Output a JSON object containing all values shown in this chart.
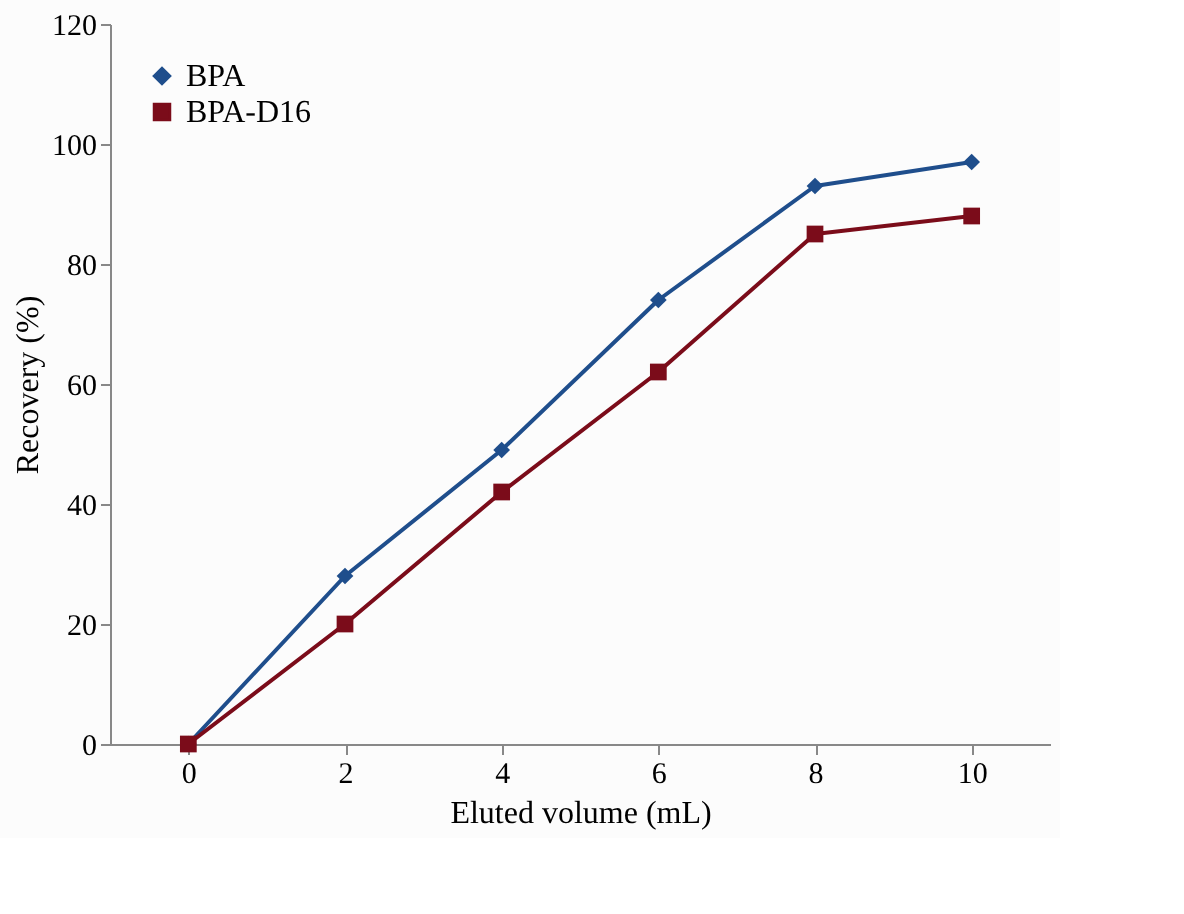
{
  "chart_data": {
    "type": "line",
    "xlabel": "Eluted volume (mL)",
    "ylabel": "Recovery (%)",
    "categories": [
      "0",
      "2",
      "4",
      "6",
      "8",
      "10"
    ],
    "series": [
      {
        "name": "BPA",
        "color": "#1f4e8c",
        "marker": "diamond",
        "values": [
          0,
          28,
          49,
          74,
          93,
          97
        ]
      },
      {
        "name": "BPA-D16",
        "color": "#7b0c1a",
        "marker": "square",
        "values": [
          0,
          20,
          42,
          62,
          85,
          88
        ]
      }
    ],
    "ylim": [
      0,
      120
    ],
    "yticks": [
      0,
      20,
      40,
      60,
      80,
      100,
      120
    ],
    "grid": false,
    "legend": "top left"
  }
}
